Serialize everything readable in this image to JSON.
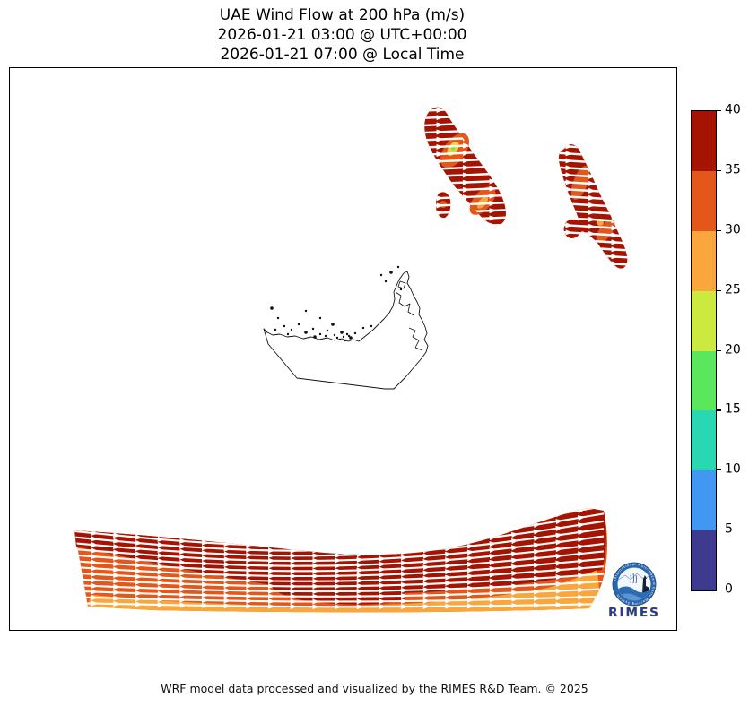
{
  "title": {
    "line1": "UAE Wind Flow at 200 hPa (m/s)",
    "line2": "2026-01-21 03:00 @ UTC+00:00",
    "line3": "2026-01-21 07:00 @ Local Time"
  },
  "footer": {
    "credit": "WRF model data processed and visualized by the RIMES R&D Team. © 2025"
  },
  "logo": {
    "wordmark": "RIMES",
    "ring_text": "International Multi-Hazard Early Warning System"
  },
  "colorbar": {
    "units": "m/s",
    "min": 0,
    "max": 40,
    "ticks": [
      0,
      5,
      10,
      15,
      20,
      25,
      30,
      35,
      40
    ],
    "bins": [
      {
        "range": "0-5",
        "color": "#3D3A90"
      },
      {
        "range": "5-10",
        "color": "#4296F4"
      },
      {
        "range": "10-15",
        "color": "#29D8B2"
      },
      {
        "range": "15-20",
        "color": "#5BE75C"
      },
      {
        "range": "20-25",
        "color": "#CBE93F"
      },
      {
        "range": "25-30",
        "color": "#F9A63C"
      },
      {
        "range": "30-35",
        "color": "#E4571B"
      },
      {
        "range": "35-40",
        "color": "#A51403"
      }
    ]
  },
  "chart_data": {
    "type": "heatmap",
    "subtype": "wind-streamline-map",
    "title": "UAE Wind Flow at 200 hPa (m/s)",
    "valid_time_utc": "2026-01-21 03:00 @ UTC+00:00",
    "valid_time_local": "2026-01-21 07:00 @ Local Time",
    "variable": "wind speed at 200 hPa",
    "units": "m/s",
    "colorbar_range": [
      0,
      40
    ],
    "colorbar_ticks": [
      0,
      5,
      10,
      15,
      20,
      25,
      30,
      35,
      40
    ],
    "colorbar_colors_bottom_to_top": [
      "#3D3A90",
      "#4296F4",
      "#29D8B2",
      "#5BE75C",
      "#CBE93F",
      "#F9A63C",
      "#E4571B",
      "#A51403"
    ],
    "legend_position": "right",
    "grid": false,
    "axis_ticks": "none",
    "flow_direction": "eastward",
    "regions": [
      {
        "name": "north-west-patch",
        "location": "upper middle of map",
        "speed_range_ms": [
          20,
          40
        ],
        "dominant_color": "#A51403",
        "hotspots_ms": [
          20,
          25
        ]
      },
      {
        "name": "north-east-patch",
        "location": "upper right of map",
        "speed_range_ms": [
          30,
          40
        ],
        "dominant_color": "#A51403"
      },
      {
        "name": "southern-jet-band",
        "location": "bottom of map, full width",
        "speed_range_ms": [
          25,
          40
        ],
        "dominant_color": "#E4571B"
      }
    ],
    "base_map": "UAE coastline and borders, black outline, no fill"
  }
}
